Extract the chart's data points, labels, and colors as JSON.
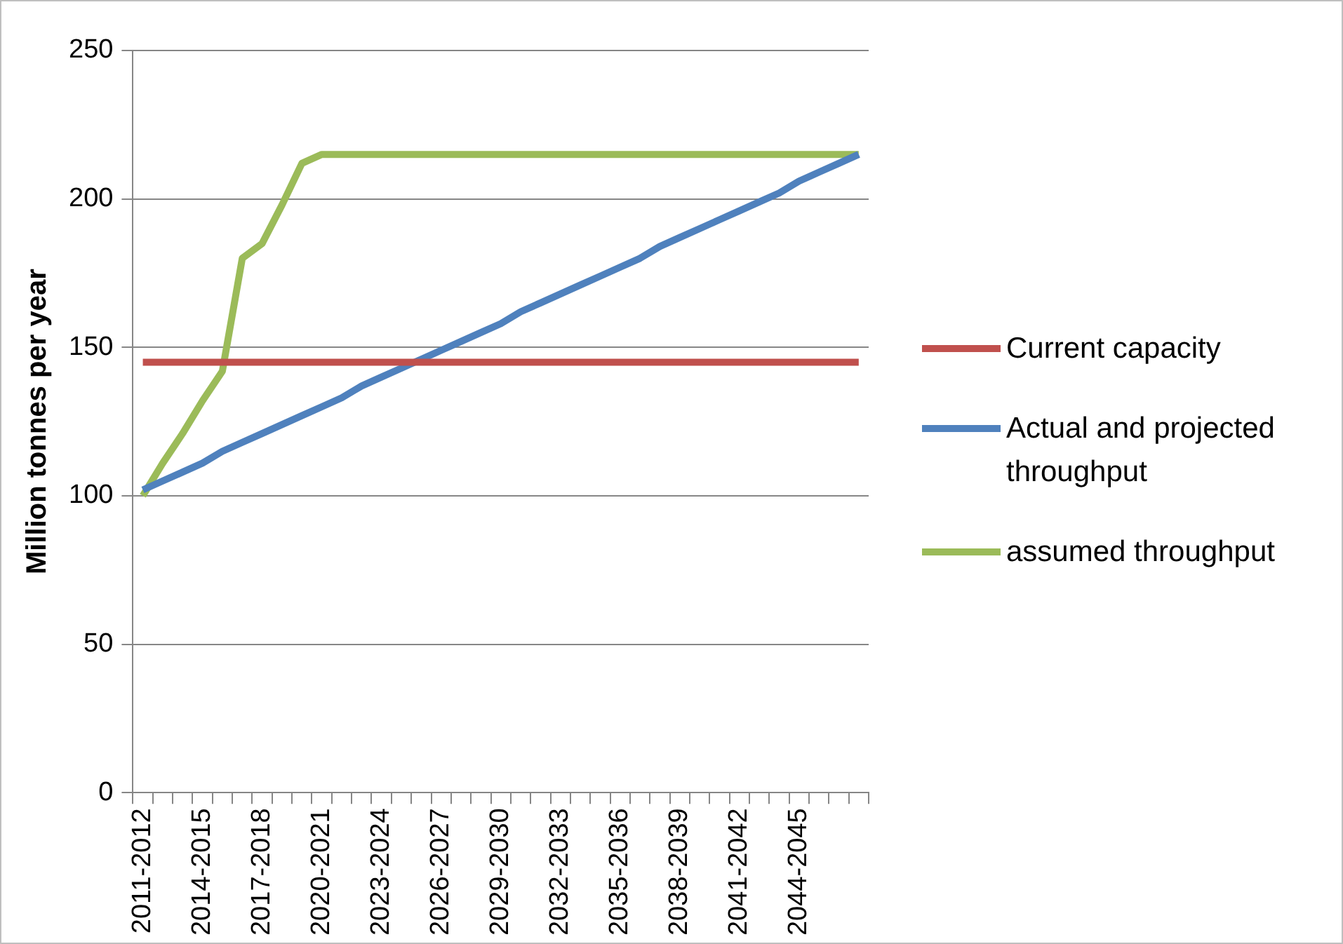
{
  "chart_data": {
    "type": "line",
    "ylabel": "Million tonnes per year",
    "categories": [
      "2011-2012",
      null,
      null,
      "2014-2015",
      null,
      null,
      "2017-2018",
      null,
      null,
      "2020-2021",
      null,
      null,
      "2023-2024",
      null,
      null,
      "2026-2027",
      null,
      null,
      "2029-2030",
      null,
      null,
      "2032-2033",
      null,
      null,
      "2035-2036",
      null,
      null,
      "2038-2039",
      null,
      null,
      "2041-2042",
      null,
      null,
      "2044-2045",
      null,
      null,
      null
    ],
    "series": [
      {
        "name": "Current capacity",
        "color": "#c0504d",
        "values": [
          145,
          145,
          145,
          145,
          145,
          145,
          145,
          145,
          145,
          145,
          145,
          145,
          145,
          145,
          145,
          145,
          145,
          145,
          145,
          145,
          145,
          145,
          145,
          145,
          145,
          145,
          145,
          145,
          145,
          145,
          145,
          145,
          145,
          145,
          145,
          145,
          145
        ]
      },
      {
        "name": "Actual and projected throughput",
        "color": "#4f81bd",
        "values": [
          102,
          105,
          108,
          111,
          115,
          118,
          121,
          124,
          127,
          130,
          133,
          137,
          140,
          143,
          146,
          149,
          152,
          155,
          158,
          162,
          165,
          168,
          171,
          174,
          177,
          180,
          184,
          187,
          190,
          193,
          196,
          199,
          202,
          206,
          209,
          212,
          215
        ]
      },
      {
        "name": "assumed throughput",
        "color": "#9bbb59",
        "values": [
          100,
          111,
          121,
          132,
          142,
          180,
          185,
          198,
          212,
          215,
          215,
          215,
          215,
          215,
          215,
          215,
          215,
          215,
          215,
          215,
          215,
          215,
          215,
          215,
          215,
          215,
          215,
          215,
          215,
          215,
          215,
          215,
          215,
          215,
          215,
          215,
          215
        ]
      }
    ],
    "ylim": [
      0,
      250
    ],
    "yticks": [
      0,
      50,
      100,
      150,
      200,
      250
    ],
    "grid": "y",
    "legend": "right",
    "marker": "none",
    "line_style": "solid"
  }
}
